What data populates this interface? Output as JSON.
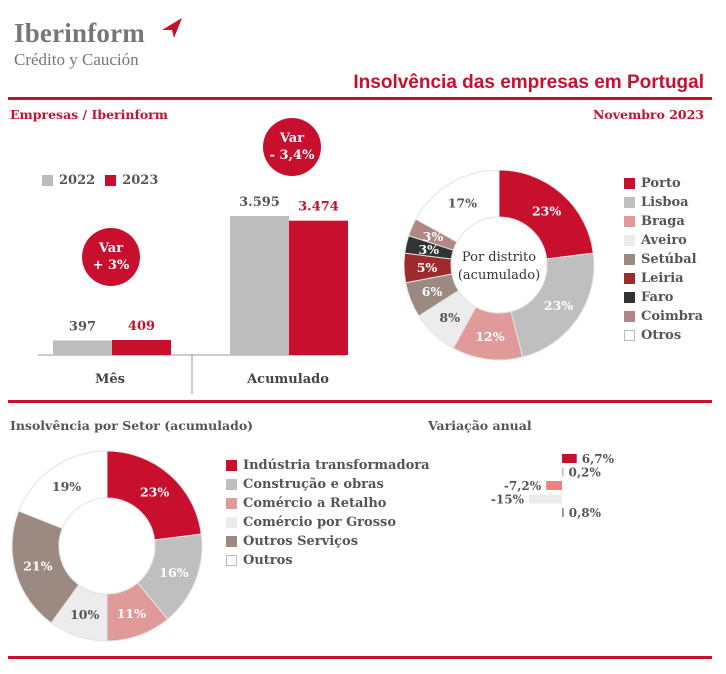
{
  "header": {
    "brand": "Iberinform",
    "brand_sub": "Crédito y Caución",
    "title": "Insolvência das empresas em Portugal",
    "left_label": "Empresas / Iberinform",
    "right_label": "Novembro 2023"
  },
  "colors": {
    "brand_red": "#c8102e",
    "series_2022": "#bdbdbd",
    "series_2023": "#c8102e"
  },
  "chart_data": [
    {
      "type": "bar",
      "categories": [
        "Mês",
        "Acumulado"
      ],
      "series": [
        {
          "name": "2022",
          "values": [
            397,
            3595
          ],
          "labels": [
            "397",
            "3.595"
          ],
          "color": "#bdbdbd"
        },
        {
          "name": "2023",
          "values": [
            409,
            3474
          ],
          "labels": [
            "409",
            "3.474"
          ],
          "color": "#c8102e"
        }
      ],
      "callouts": [
        {
          "line1": "Var",
          "line2": "+ 3%"
        },
        {
          "line1": "Var",
          "line2": "- 3,4%"
        }
      ]
    },
    {
      "type": "pie",
      "title": "Por distrito (acumulado)",
      "slices": [
        {
          "name": "Porto",
          "value": 23,
          "label": "23%",
          "color": "#c8102e"
        },
        {
          "name": "Lisboa",
          "value": 23,
          "label": "23%",
          "color": "#bfbfbf"
        },
        {
          "name": "Braga",
          "value": 12,
          "label": "12%",
          "color": "#e09a9a"
        },
        {
          "name": "Aveiro",
          "value": 8,
          "label": "8%",
          "color": "#ececec"
        },
        {
          "name": "Setúbal",
          "value": 6,
          "label": "6%",
          "color": "#9c8a82"
        },
        {
          "name": "Leiria",
          "value": 5,
          "label": "5%",
          "color": "#9e2a2b"
        },
        {
          "name": "Faro",
          "value": 3,
          "label": "3%",
          "color": "#333333"
        },
        {
          "name": "Coimbra",
          "value": 3,
          "label": "3%",
          "color": "#b08686"
        },
        {
          "name": "Otros",
          "value": 17,
          "label": "17%",
          "color": "#ffffff"
        }
      ]
    },
    {
      "type": "pie",
      "title": "Insolvência por Setor (acumulado)",
      "slices": [
        {
          "name": "Indústria transformadora",
          "value": 23,
          "label": "23%",
          "color": "#c8102e"
        },
        {
          "name": "Construção e obras",
          "value": 16,
          "label": "16%",
          "color": "#bfbfbf"
        },
        {
          "name": "Comércio a Retalho",
          "value": 11,
          "label": "11%",
          "color": "#e09a9a"
        },
        {
          "name": "Comércio por Grosso",
          "value": 10,
          "label": "10%",
          "color": "#ececec"
        },
        {
          "name": "Outros Serviços",
          "value": 21,
          "label": "21%",
          "color": "#9c8a82"
        },
        {
          "name": "Outros",
          "value": 19,
          "label": "19%",
          "color": "#ffffff"
        }
      ]
    },
    {
      "type": "bar",
      "title": "Variação anual",
      "values": [
        6.7,
        0.2,
        -7.2,
        -15,
        0.8
      ],
      "labels": [
        "6,7%",
        "0,2%",
        "-7,2%",
        "-15%",
        "0,8%"
      ],
      "colors": [
        "#c8102e",
        "#bfbfbf",
        "#f08080",
        "#ececec",
        "#9c8a82"
      ]
    }
  ]
}
